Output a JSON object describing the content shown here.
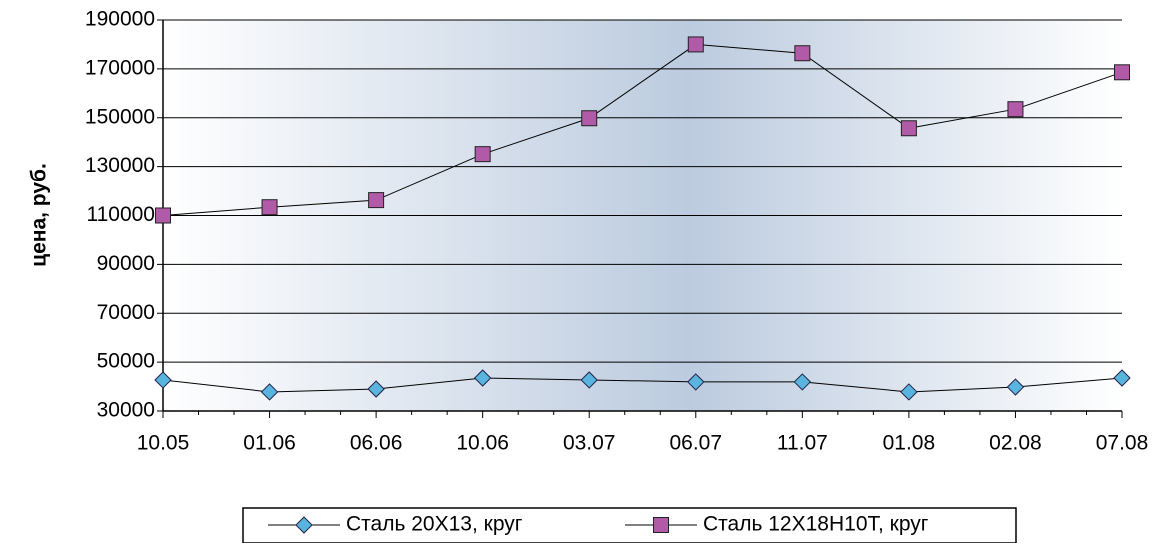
{
  "chart_data": {
    "type": "line",
    "ylabel": "цена, руб.",
    "categories": [
      "10.05",
      "01.06",
      "06.06",
      "10.06",
      "03.07",
      "06.07",
      "11.07",
      "01.08",
      "02.08",
      "07.08"
    ],
    "series": [
      {
        "name": "Сталь 20Х13, круг",
        "color": "#5ab4e0",
        "marker": "diamond",
        "values": [
          42700,
          37800,
          39000,
          43500,
          42700,
          41900,
          41900,
          37800,
          39800,
          43500
        ]
      },
      {
        "name": "Сталь 12Х18Н10Т, круг",
        "color": "#b05aa8",
        "marker": "square",
        "values": [
          110000,
          113400,
          116300,
          135100,
          149800,
          180000,
          176400,
          145700,
          153500,
          168600
        ]
      }
    ],
    "ylim": [
      30000,
      190000
    ],
    "yticks": [
      30000,
      50000,
      70000,
      90000,
      110000,
      130000,
      150000,
      170000,
      190000
    ],
    "grid": true,
    "legend": "bottom"
  }
}
